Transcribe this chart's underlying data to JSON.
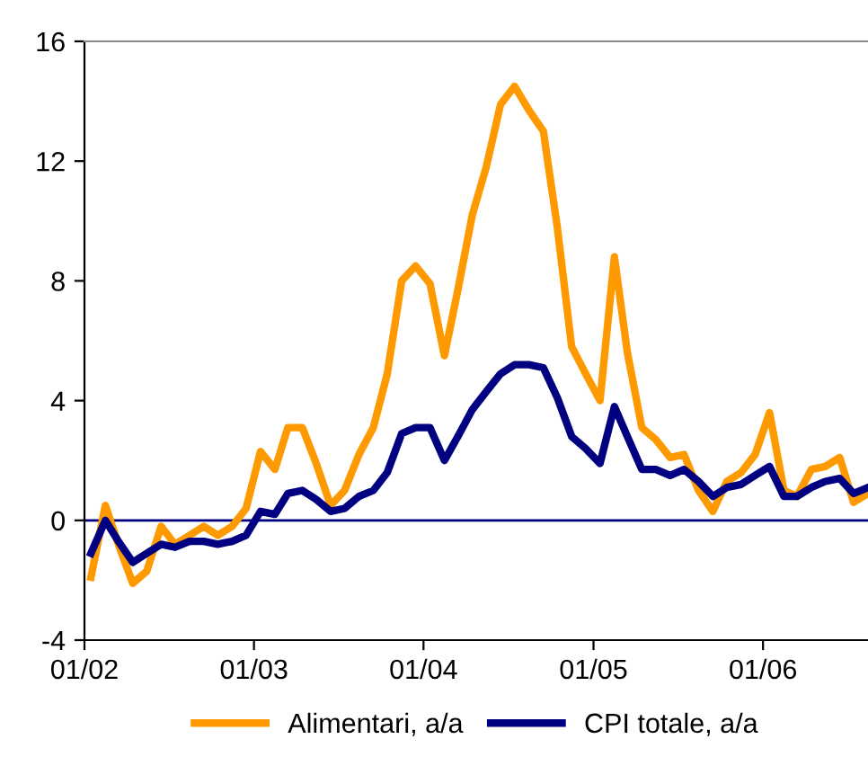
{
  "chart_data": {
    "type": "line",
    "x": [
      "2002-01-15",
      "2002-02-15",
      "2002-03-15",
      "2002-04-15",
      "2002-05-15",
      "2002-06-15",
      "2002-07-15",
      "2002-08-15",
      "2002-09-15",
      "2002-10-15",
      "2002-11-15",
      "2002-12-15",
      "2003-01-15",
      "2003-02-15",
      "2003-03-15",
      "2003-04-15",
      "2003-05-15",
      "2003-06-15",
      "2003-07-15",
      "2003-08-15",
      "2003-09-15",
      "2003-10-15",
      "2003-11-15",
      "2003-12-15",
      "2004-01-15",
      "2004-02-15",
      "2004-03-15",
      "2004-04-15",
      "2004-05-15",
      "2004-06-15",
      "2004-07-15",
      "2004-08-15",
      "2004-09-15",
      "2004-10-15",
      "2004-11-15",
      "2004-12-15",
      "2005-01-15",
      "2005-02-15",
      "2005-03-15",
      "2005-04-15",
      "2005-05-15",
      "2005-06-15",
      "2005-07-15",
      "2005-08-15",
      "2005-09-15",
      "2005-10-15",
      "2005-11-15",
      "2005-12-15",
      "2006-01-15",
      "2006-02-15",
      "2006-03-15",
      "2006-04-15",
      "2006-05-15",
      "2006-06-15",
      "2006-07-15",
      "2006-08-15"
    ],
    "series": [
      {
        "name": "Alimentari, a/a",
        "color": "#ff9900",
        "values": [
          -1.9,
          0.5,
          -0.8,
          -2.1,
          -1.7,
          -0.2,
          -0.8,
          -0.5,
          -0.2,
          -0.5,
          -0.2,
          0.4,
          2.3,
          1.7,
          3.1,
          3.1,
          1.9,
          0.5,
          1.0,
          2.2,
          3.1,
          4.9,
          8.0,
          8.5,
          7.9,
          5.5,
          7.7,
          10.2,
          11.8,
          13.9,
          14.5,
          13.7,
          13.0,
          9.8,
          5.8,
          4.9,
          4.0,
          8.8,
          5.6,
          3.1,
          2.7,
          2.1,
          2.2,
          1.0,
          0.3,
          1.3,
          1.6,
          2.2,
          3.6,
          1.0,
          0.8,
          1.7,
          1.8,
          2.1,
          0.6,
          0.9
        ]
      },
      {
        "name": "CPI totale, a/a",
        "color": "#000080",
        "values": [
          -1.1,
          0.0,
          -0.7,
          -1.4,
          -1.1,
          -0.8,
          -0.9,
          -0.7,
          -0.7,
          -0.8,
          -0.7,
          -0.5,
          0.3,
          0.2,
          0.9,
          1.0,
          0.7,
          0.3,
          0.4,
          0.8,
          1.0,
          1.6,
          2.9,
          3.1,
          3.1,
          2.0,
          2.8,
          3.7,
          4.3,
          4.9,
          5.2,
          5.2,
          5.1,
          4.1,
          2.8,
          2.4,
          1.9,
          3.8,
          2.8,
          1.7,
          1.7,
          1.5,
          1.7,
          1.3,
          0.8,
          1.1,
          1.2,
          1.5,
          1.8,
          0.8,
          0.8,
          1.1,
          1.3,
          1.4,
          0.9,
          1.1
        ]
      }
    ],
    "xlim": [
      "2002-01-01",
      "2006-08-15"
    ],
    "xticks": [
      {
        "value": "2002-01-01",
        "label": "01/02"
      },
      {
        "value": "2003-01-01",
        "label": "01/03"
      },
      {
        "value": "2004-01-01",
        "label": "01/04"
      },
      {
        "value": "2005-01-01",
        "label": "01/05"
      },
      {
        "value": "2006-01-01",
        "label": "01/06"
      }
    ],
    "ylim": [
      -4,
      16
    ],
    "yticks": [
      -4,
      0,
      4,
      8,
      12,
      16
    ],
    "ref_lines": [
      {
        "axis": "y",
        "value": 0,
        "color": "#000080"
      }
    ],
    "grid": false,
    "legend": "bottom",
    "marker": "none",
    "line_style": "solid"
  }
}
